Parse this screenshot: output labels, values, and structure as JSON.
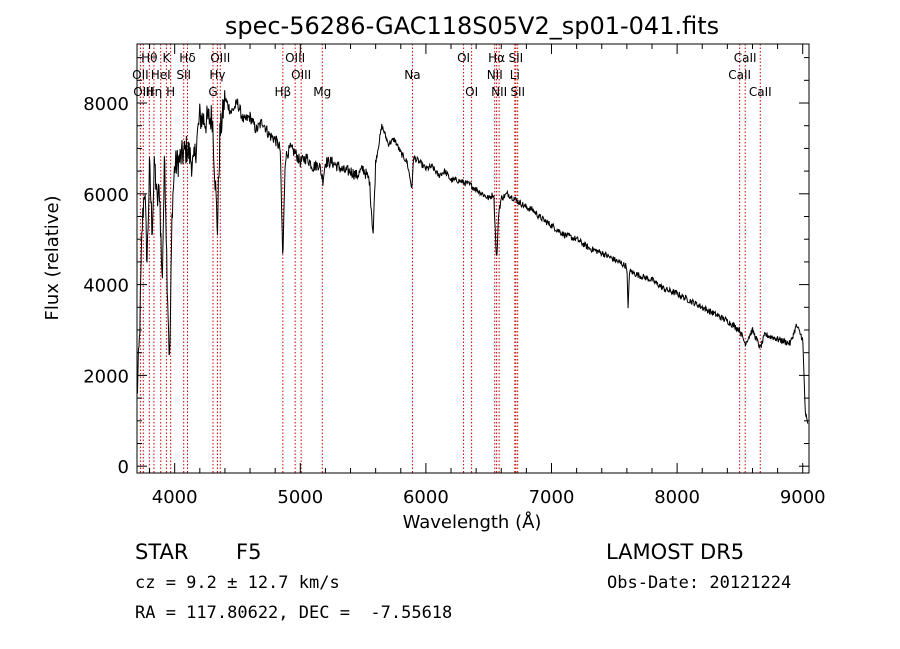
{
  "chart_data": {
    "type": "line",
    "title": "spec-56286-GAC118S05V2_sp01-041.fits",
    "xlabel": "Wavelength (Å)",
    "ylabel": "Flux (relative)",
    "xlim": [
      3700,
      9050
    ],
    "ylim": [
      -150,
      9300
    ],
    "xticks": [
      4000,
      5000,
      6000,
      7000,
      8000,
      9000
    ],
    "yticks": [
      0,
      2000,
      4000,
      6000,
      8000
    ],
    "tick_labels_x": [
      "4000",
      "5000",
      "6000",
      "7000",
      "8000",
      "9000"
    ],
    "tick_labels_y": [
      "0",
      "2000",
      "4000",
      "6000",
      "8000"
    ],
    "grid": false,
    "series": [
      {
        "x": [
          3700,
          3720,
          3740,
          3760,
          3780,
          3800,
          3820,
          3840,
          3860,
          3880,
          3900,
          3920,
          3940,
          3960,
          3980,
          4000,
          4050,
          4100,
          4150,
          4200,
          4250,
          4300,
          4340,
          4360,
          4400,
          4450,
          4500,
          4550,
          4600,
          4650,
          4700,
          4750,
          4800,
          4840,
          4861,
          4880,
          4920,
          4960,
          5000,
          5050,
          5100,
          5150,
          5180,
          5200,
          5250,
          5300,
          5350,
          5400,
          5450,
          5500,
          5550,
          5580,
          5600,
          5650,
          5700,
          5750,
          5800,
          5850,
          5890,
          5900,
          5950,
          6000,
          6050,
          6100,
          6150,
          6200,
          6250,
          6300,
          6350,
          6400,
          6450,
          6500,
          6540,
          6563,
          6580,
          6600,
          6650,
          6700,
          6750,
          6800,
          6850,
          6900,
          6950,
          7000,
          7100,
          7200,
          7300,
          7400,
          7500,
          7600,
          7610,
          7620,
          7700,
          7800,
          7900,
          8000,
          8100,
          8200,
          8300,
          8400,
          8498,
          8542,
          8600,
          8662,
          8700,
          8800,
          8900,
          8950,
          9000,
          9020,
          9040
        ],
        "y": [
          1500,
          2800,
          5200,
          6200,
          4500,
          6600,
          5200,
          6700,
          5800,
          6100,
          4000,
          6900,
          4200,
          2200,
          5700,
          6600,
          6800,
          7000,
          6600,
          7700,
          7600,
          7700,
          5200,
          7300,
          8100,
          7800,
          8000,
          7600,
          7700,
          7400,
          7600,
          7300,
          7200,
          7000,
          4500,
          6800,
          7000,
          6900,
          6700,
          6800,
          6600,
          6650,
          6300,
          6700,
          6700,
          6600,
          6500,
          6500,
          6400,
          6550,
          6300,
          5100,
          6700,
          7500,
          7100,
          7200,
          6900,
          6700,
          6100,
          6800,
          6700,
          6550,
          6600,
          6400,
          6500,
          6300,
          6300,
          6250,
          6200,
          6100,
          6000,
          5900,
          6000,
          4500,
          5600,
          5900,
          6000,
          5900,
          5800,
          5700,
          5650,
          5500,
          5400,
          5300,
          5100,
          5000,
          4800,
          4700,
          4550,
          4400,
          3400,
          4300,
          4200,
          4100,
          3900,
          3800,
          3650,
          3500,
          3350,
          3200,
          3000,
          2700,
          3000,
          2600,
          2900,
          2800,
          2700,
          3100,
          2800,
          1200,
          900
        ]
      }
    ],
    "lines": [
      {
        "label": "Hθ",
        "x": 3798,
        "row": 0
      },
      {
        "label": "OII",
        "x": 3727,
        "row": 1
      },
      {
        "label": "OIII",
        "x": 3750,
        "row": 2
      },
      {
        "label": "Hη",
        "x": 3835,
        "row": 2
      },
      {
        "label": "HeI",
        "x": 3889,
        "row": 1
      },
      {
        "label": "K",
        "x": 3934,
        "row": 0
      },
      {
        "label": "H",
        "x": 3968,
        "row": 2
      },
      {
        "label": "Hδ",
        "x": 4102,
        "row": 0
      },
      {
        "label": "SII",
        "x": 4072,
        "row": 1
      },
      {
        "label": "OIII",
        "x": 4363,
        "row": 0
      },
      {
        "label": "Hγ",
        "x": 4340,
        "row": 1
      },
      {
        "label": "G",
        "x": 4305,
        "row": 2
      },
      {
        "label": "Hβ",
        "x": 4861,
        "row": 2
      },
      {
        "label": "OIII",
        "x": 4959,
        "row": 0
      },
      {
        "label": "OIII",
        "x": 5007,
        "row": 1
      },
      {
        "label": "Mg",
        "x": 5175,
        "row": 2
      },
      {
        "label": "Na",
        "x": 5893,
        "row": 1
      },
      {
        "label": "OI",
        "x": 6300,
        "row": 0
      },
      {
        "label": "OI",
        "x": 6364,
        "row": 2
      },
      {
        "label": "Hα",
        "x": 6563,
        "row": 0
      },
      {
        "label": "NII",
        "x": 6548,
        "row": 1
      },
      {
        "label": "NII",
        "x": 6583,
        "row": 2
      },
      {
        "label": "SII",
        "x": 6716,
        "row": 0
      },
      {
        "label": "Li",
        "x": 6708,
        "row": 1
      },
      {
        "label": "SII",
        "x": 6731,
        "row": 2
      },
      {
        "label": "CaII",
        "x": 8542,
        "row": 0
      },
      {
        "label": "CaII",
        "x": 8498,
        "row": 1
      },
      {
        "label": "CaII",
        "x": 8662,
        "row": 2
      }
    ]
  },
  "info": {
    "object_class": "STAR",
    "subclass": "F5",
    "survey": "LAMOST DR5",
    "cz": "cz = 9.2 ± 12.7 km/s",
    "obs_date": "Obs-Date: 20121224",
    "coords": "RA = 117.80622, DEC =  -7.55618"
  }
}
